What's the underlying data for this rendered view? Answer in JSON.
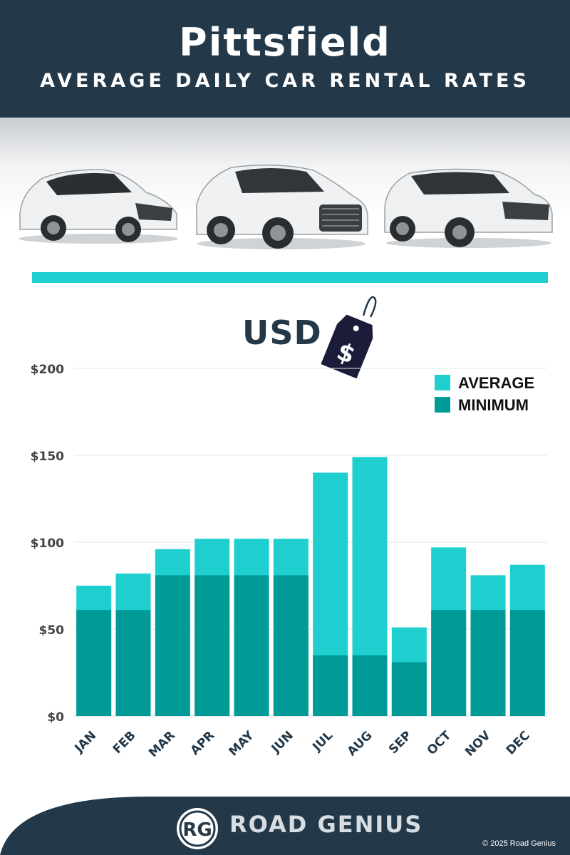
{
  "header": {
    "title": "Pittsfield",
    "subtitle": "AVERAGE DAILY CAR RENTAL RATES"
  },
  "currency_label": "USD",
  "tag_symbol": "$",
  "colors": {
    "header_bg": "#23394a",
    "average": "#1fcfcf",
    "minimum": "#009b96",
    "axis_text": "#444444",
    "month_text": "#23394a"
  },
  "chart_data": {
    "type": "bar",
    "stacked_overlay": true,
    "categories": [
      "JAN",
      "FEB",
      "MAR",
      "APR",
      "MAY",
      "JUN",
      "JUL",
      "AUG",
      "SEP",
      "OCT",
      "NOV",
      "DEC"
    ],
    "series": [
      {
        "name": "AVERAGE",
        "values": [
          75,
          82,
          96,
          102,
          102,
          102,
          140,
          149,
          51,
          97,
          81,
          87
        ]
      },
      {
        "name": "MINIMUM",
        "values": [
          61,
          61,
          81,
          81,
          81,
          81,
          35,
          35,
          31,
          61,
          61,
          61
        ]
      }
    ],
    "yticks": [
      "$0",
      "$50",
      "$100",
      "$150",
      "$200"
    ],
    "ylim": [
      0,
      200
    ],
    "legend_position": "top-right",
    "grid": true
  },
  "footer": {
    "logo_text": "RG",
    "brand": "ROAD GENIUS",
    "copyright": "© 2025 Road Genius"
  }
}
